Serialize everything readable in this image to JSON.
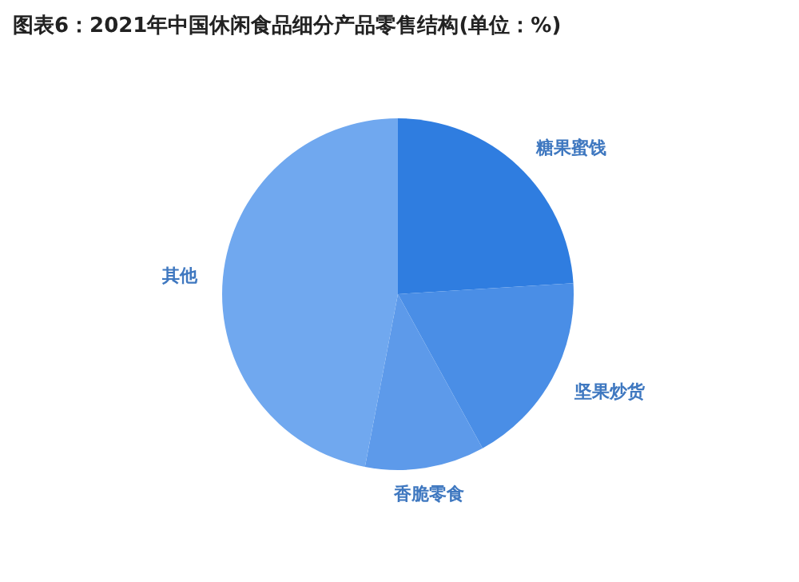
{
  "chart_data": {
    "type": "pie",
    "title": "图表6：2021年中国休闲食品细分产品零售结构(单位：%)",
    "categories": [
      "糖果蜜饯",
      "坚果炒货",
      "香脆零食",
      "其他"
    ],
    "values": [
      24,
      18,
      11,
      47
    ],
    "colors": [
      "#2f7de0",
      "#4a8ee6",
      "#5d9aea",
      "#70a8ef"
    ]
  }
}
